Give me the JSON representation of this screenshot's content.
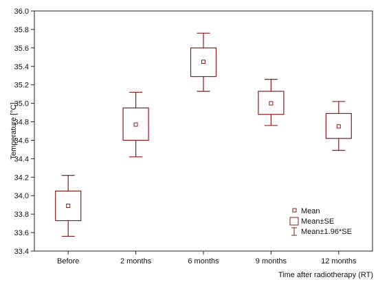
{
  "colors": {
    "series": "#8b1a1a",
    "axis": "#222222",
    "plot_background": "#ffffff"
  },
  "chart_data": {
    "type": "box",
    "title": "",
    "xlabel": "Time after radiotherapy (RT)",
    "ylabel": "Temperature [°C]",
    "ylim": [
      33.4,
      36.0
    ],
    "y_ticks": [
      "33.4",
      "33.6",
      "33.8",
      "34.0",
      "34.2",
      "34.4",
      "34.6",
      "34.8",
      "35.0",
      "35.2",
      "35.4",
      "35.6",
      "35.8",
      "36.0"
    ],
    "grid": false,
    "legend_position": "bottom-right",
    "legend": [
      "Mean",
      "Mean±SE",
      "Mean±1.96*SE"
    ],
    "categories": [
      "Before",
      "2 months",
      "6 months",
      "9 months",
      "12 months"
    ],
    "mean": [
      33.89,
      34.77,
      35.45,
      35.0,
      34.75
    ],
    "se_low": [
      33.73,
      34.6,
      35.29,
      34.88,
      34.62
    ],
    "se_high": [
      34.05,
      34.95,
      35.6,
      35.13,
      34.89
    ],
    "ci_low": [
      33.56,
      34.42,
      35.13,
      34.76,
      34.49
    ],
    "ci_high": [
      34.22,
      35.12,
      35.76,
      35.26,
      35.02
    ]
  }
}
